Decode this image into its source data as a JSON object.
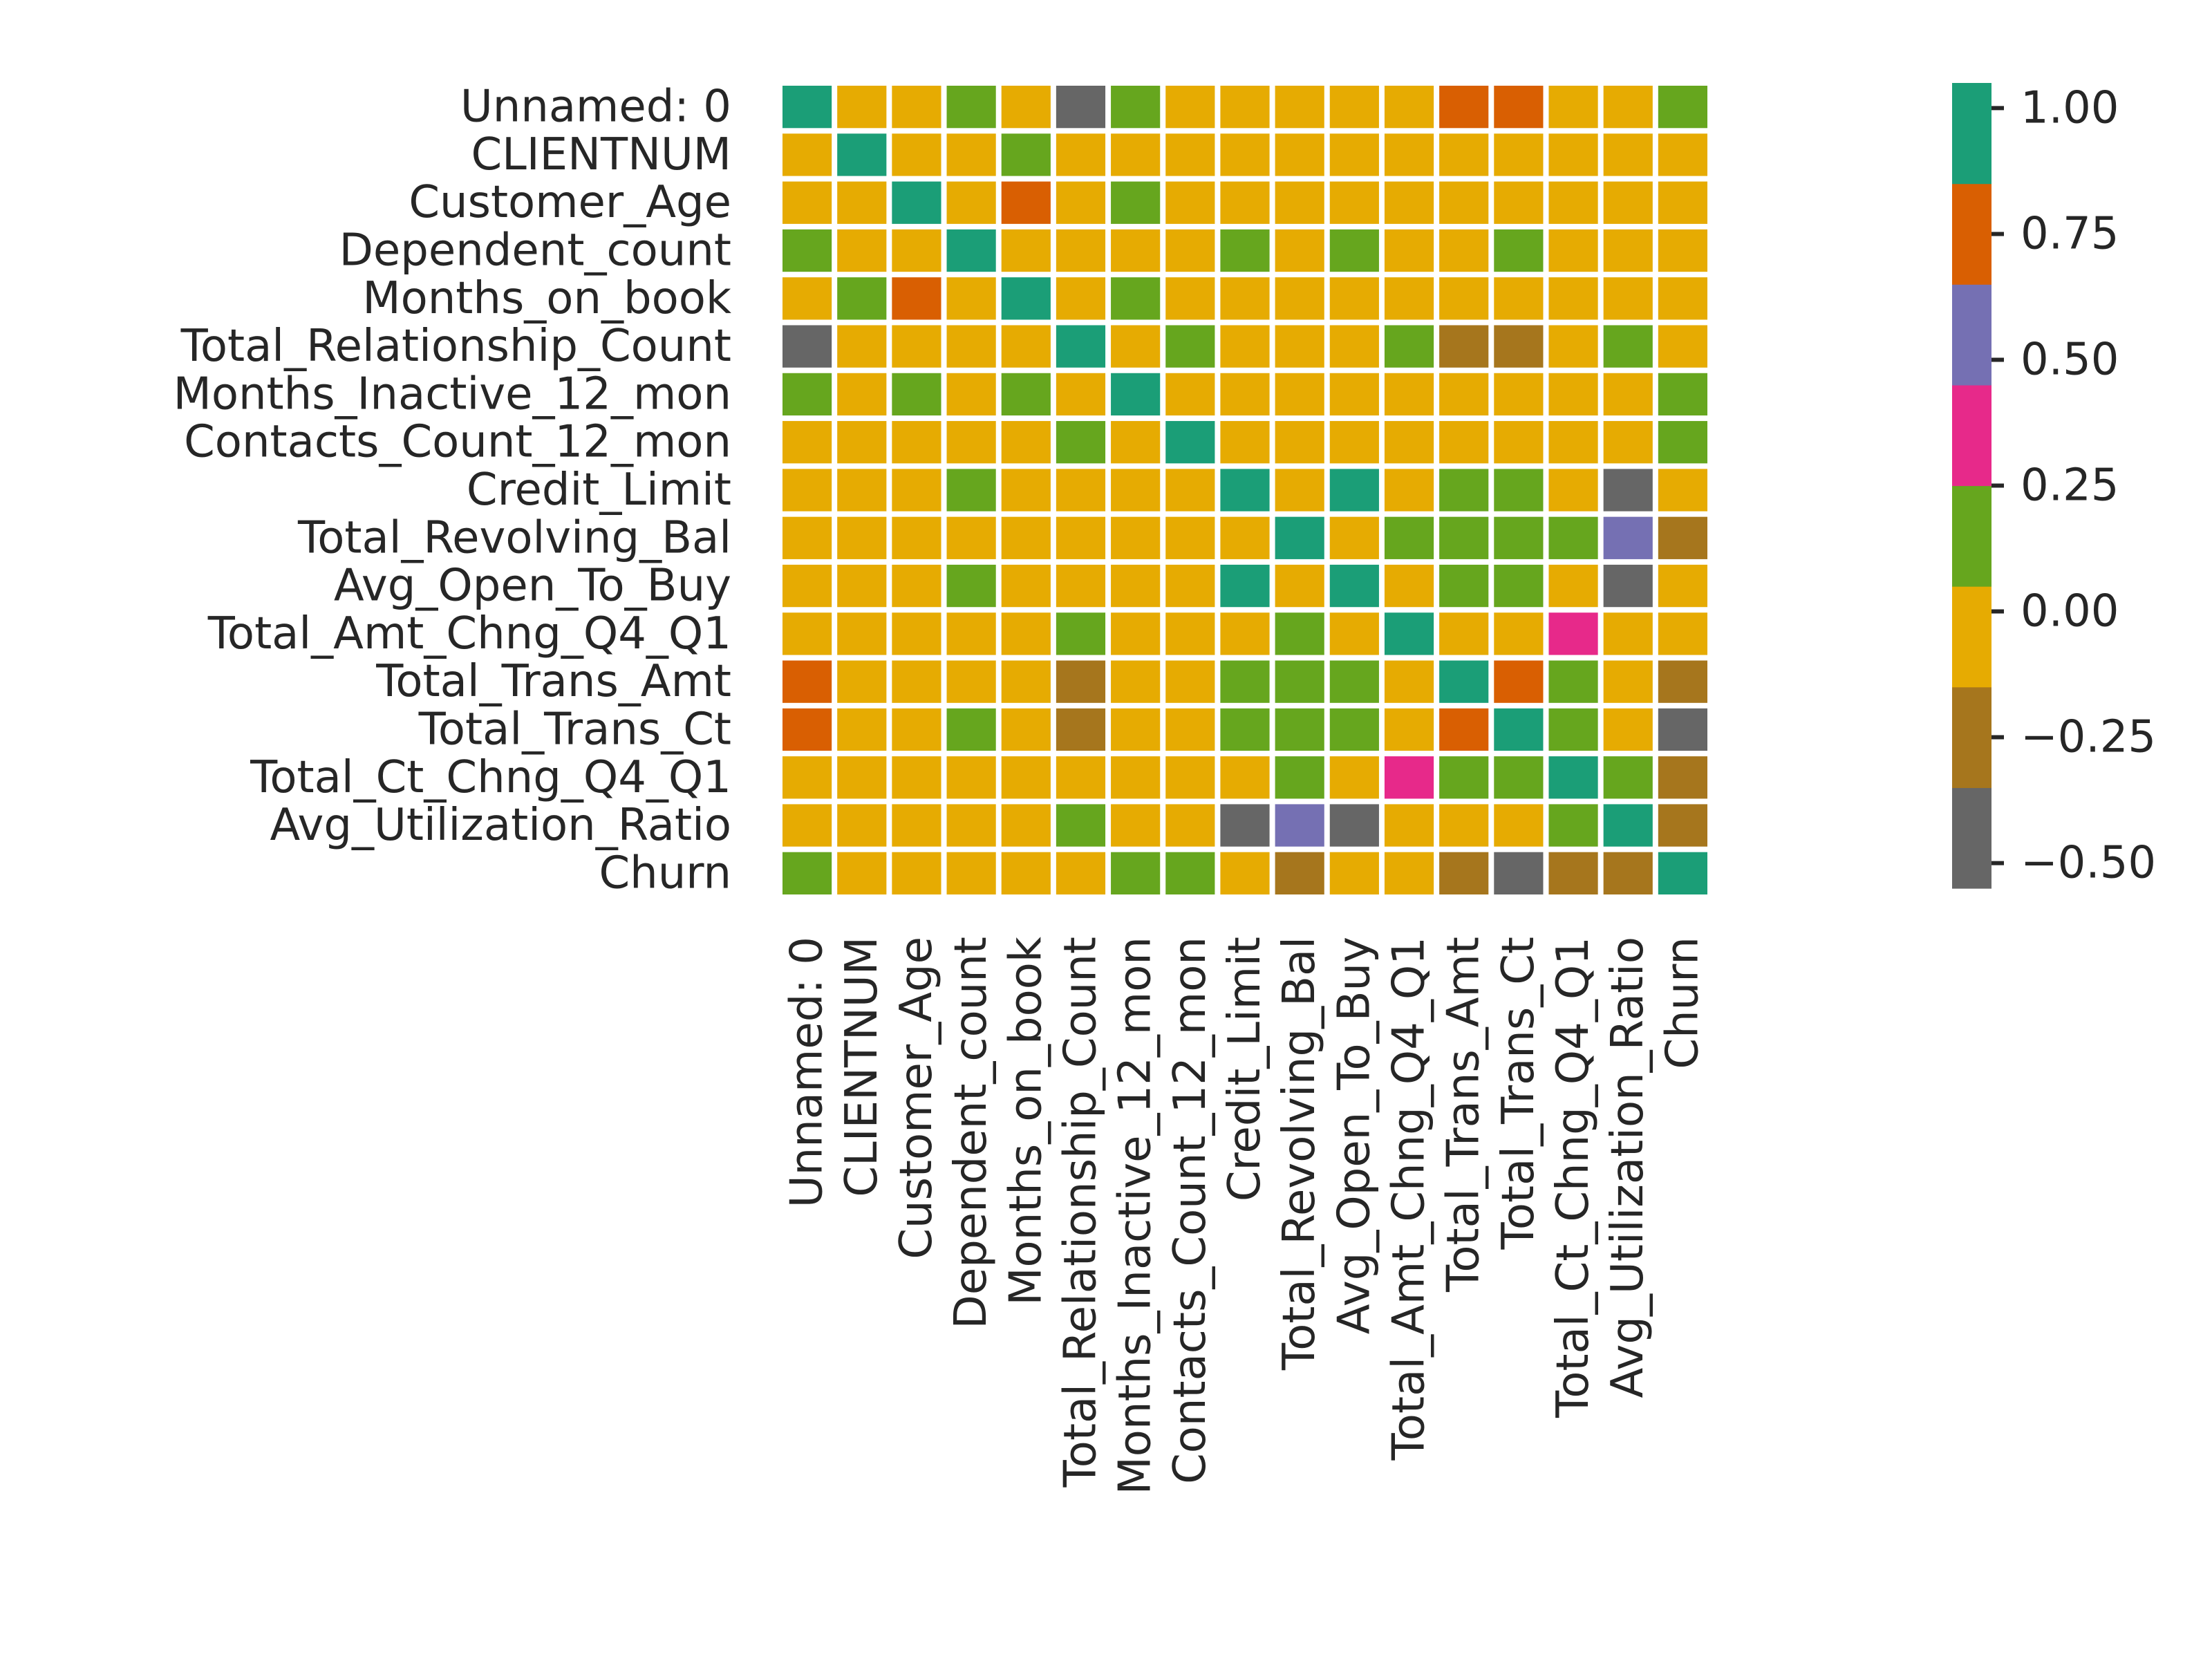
{
  "chart_data": {
    "type": "heatmap",
    "title": "",
    "xlabel": "",
    "ylabel": "",
    "row_labels": [
      "Unnamed: 0",
      "CLIENTNUM",
      "Customer_Age",
      "Dependent_count",
      "Months_on_book",
      "Total_Relationship_Count",
      "Months_Inactive_12_mon",
      "Contacts_Count_12_mon",
      "Credit_Limit",
      "Total_Revolving_Bal",
      "Avg_Open_To_Buy",
      "Total_Amt_Chng_Q4_Q1",
      "Total_Trans_Amt",
      "Total_Trans_Ct",
      "Total_Ct_Chng_Q4_Q1",
      "Avg_Utilization_Ratio",
      "Churn"
    ],
    "col_labels": [
      "Unnamed: 0",
      "CLIENTNUM",
      "Customer_Age",
      "Dependent_count",
      "Months_on_book",
      "Total_Relationship_Count",
      "Months_Inactive_12_mon",
      "Contacts_Count_12_mon",
      "Credit_Limit",
      "Total_Revolving_Bal",
      "Avg_Open_To_Buy",
      "Total_Amt_Chng_Q4_Q1",
      "Total_Trans_Amt",
      "Total_Trans_Ct",
      "Total_Ct_Chng_Q4_Q1",
      "Avg_Utilization_Ratio",
      "Churn"
    ],
    "values": [
      [
        1.0,
        0.0,
        -0.04,
        0.05,
        0.0,
        -0.52,
        0.05,
        0.0,
        0.0,
        0.0,
        0.0,
        0.0,
        0.78,
        0.8,
        0.0,
        0.0,
        0.08
      ],
      [
        0.0,
        1.0,
        0.0,
        0.0,
        0.1,
        0.0,
        0.0,
        0.0,
        0.0,
        0.0,
        0.0,
        0.0,
        0.0,
        0.0,
        0.0,
        0.0,
        0.0
      ],
      [
        -0.04,
        0.0,
        1.0,
        -0.12,
        0.79,
        -0.01,
        0.05,
        0.0,
        0.0,
        0.0,
        0.0,
        -0.06,
        -0.05,
        -0.07,
        -0.01,
        0.0,
        0.02
      ],
      [
        0.05,
        0.0,
        -0.12,
        1.0,
        -0.1,
        -0.04,
        -0.01,
        -0.04,
        0.07,
        0.0,
        0.07,
        -0.04,
        0.03,
        0.05,
        0.01,
        -0.04,
        0.02
      ],
      [
        0.0,
        0.1,
        0.79,
        -0.1,
        1.0,
        -0.01,
        0.07,
        -0.01,
        0.01,
        0.01,
        0.01,
        -0.05,
        -0.04,
        -0.05,
        -0.01,
        0.0,
        0.01
      ],
      [
        -0.52,
        0.0,
        -0.01,
        -0.04,
        -0.01,
        1.0,
        -0.0,
        0.06,
        -0.07,
        0.01,
        -0.07,
        0.05,
        -0.35,
        -0.24,
        0.04,
        0.07,
        -0.15
      ],
      [
        0.05,
        0.0,
        0.05,
        -0.01,
        0.07,
        -0.0,
        1.0,
        0.03,
        -0.02,
        -0.04,
        -0.02,
        -0.03,
        -0.04,
        -0.04,
        -0.04,
        -0.01,
        0.15
      ],
      [
        0.0,
        0.0,
        0.0,
        -0.04,
        -0.01,
        0.06,
        0.03,
        1.0,
        0.02,
        -0.05,
        0.03,
        -0.02,
        -0.11,
        -0.15,
        -0.09,
        -0.06,
        0.2
      ],
      [
        0.0,
        0.0,
        0.0,
        0.07,
        0.01,
        -0.07,
        -0.02,
        0.02,
        1.0,
        0.04,
        1.0,
        0.01,
        0.17,
        0.08,
        -0.0,
        -0.48,
        -0.02
      ],
      [
        0.0,
        0.0,
        0.0,
        0.0,
        0.01,
        0.01,
        -0.04,
        -0.05,
        0.04,
        1.0,
        -0.05,
        0.06,
        0.06,
        0.06,
        0.09,
        0.62,
        -0.26
      ],
      [
        0.0,
        0.0,
        0.0,
        0.07,
        0.01,
        -0.07,
        -0.02,
        0.03,
        1.0,
        -0.05,
        1.0,
        0.01,
        0.17,
        0.07,
        -0.01,
        -0.54,
        -0.0
      ],
      [
        0.0,
        0.0,
        -0.06,
        -0.04,
        -0.05,
        0.05,
        -0.03,
        -0.02,
        0.01,
        0.06,
        0.01,
        1.0,
        0.04,
        0.01,
        0.38,
        0.04,
        -0.13
      ],
      [
        0.78,
        0.0,
        -0.05,
        0.03,
        -0.04,
        -0.35,
        -0.04,
        -0.11,
        0.17,
        0.06,
        0.17,
        0.04,
        1.0,
        0.81,
        0.09,
        -0.08,
        -0.17
      ],
      [
        0.8,
        0.0,
        -0.07,
        0.05,
        -0.05,
        -0.24,
        -0.04,
        -0.15,
        0.08,
        0.06,
        0.07,
        0.01,
        0.81,
        1.0,
        0.11,
        0.0,
        -0.37
      ],
      [
        0.0,
        0.0,
        -0.01,
        0.01,
        -0.01,
        0.04,
        -0.04,
        -0.09,
        -0.0,
        0.09,
        -0.01,
        0.38,
        0.09,
        0.11,
        1.0,
        0.07,
        -0.29
      ],
      [
        0.0,
        0.0,
        0.0,
        -0.04,
        0.0,
        0.07,
        -0.01,
        -0.06,
        -0.48,
        0.62,
        -0.54,
        0.04,
        -0.08,
        0.0,
        0.07,
        1.0,
        -0.18
      ],
      [
        0.08,
        0.0,
        0.02,
        0.02,
        0.01,
        -0.15,
        0.15,
        0.2,
        -0.02,
        -0.26,
        -0.0,
        -0.13,
        -0.17,
        -0.37,
        -0.29,
        -0.18,
        1.0
      ]
    ],
    "vmin": -0.55,
    "vmax": 1.05,
    "colormap": "Dark2",
    "colormap_colors": [
      "#666666",
      "#a6761d",
      "#e6ab02",
      "#66a61e",
      "#e7298a",
      "#7570b3",
      "#d95f02",
      "#1b9e77"
    ],
    "colorbar": {
      "ticks": [
        1.0,
        0.75,
        0.5,
        0.25,
        0.0,
        -0.25,
        -0.5
      ],
      "tick_labels": [
        "1.00",
        "0.75",
        "0.50",
        "0.25",
        "0.00",
        "−0.25",
        "−0.50"
      ]
    },
    "grid": false,
    "cell_gap_color": "#ffffff"
  }
}
